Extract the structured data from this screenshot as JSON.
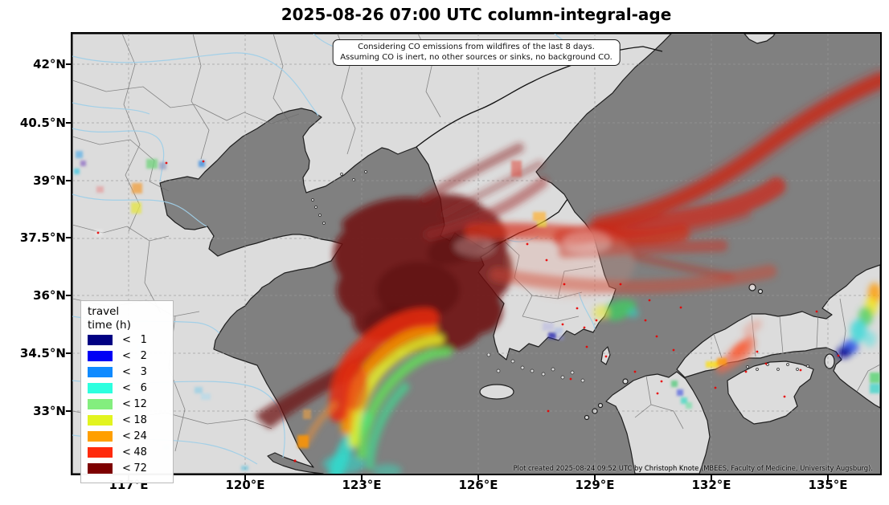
{
  "window": {
    "title": "2025-08-26 07:00 UTC column-integral-age"
  },
  "annotation": {
    "line1": "Considering CO emissions from wildfires of the last 8 days.",
    "line2": "Assuming CO is inert, no other sources or sinks, no background CO."
  },
  "axes": {
    "x_ticks": [
      "117°E",
      "120°E",
      "123°E",
      "126°E",
      "129°E",
      "132°E",
      "135°E"
    ],
    "y_ticks": [
      "42°N",
      "40.5°N",
      "39°N",
      "37.5°N",
      "36°N",
      "34.5°N",
      "33°N"
    ]
  },
  "legend": {
    "title_line1": "travel",
    "title_line2": "time (h)",
    "items": [
      {
        "op": "<",
        "value": "1",
        "color": "#000082"
      },
      {
        "op": "<",
        "value": "2",
        "color": "#0000f5"
      },
      {
        "op": "<",
        "value": "3",
        "color": "#0f8aff"
      },
      {
        "op": "<",
        "value": "6",
        "color": "#2cffdf"
      },
      {
        "op": "<",
        "value": "12",
        "color": "#83ee7e"
      },
      {
        "op": "<",
        "value": "18",
        "color": "#e2f41f"
      },
      {
        "op": "<",
        "value": "24",
        "color": "#ff9f00"
      },
      {
        "op": "<",
        "value": "48",
        "color": "#ff2a0c"
      },
      {
        "op": "<",
        "value": "72",
        "color": "#7d0000"
      }
    ]
  },
  "credit": "Plot created 2025-08-24 09:52 UTC by Christoph Knote (MBEES, Faculty of Medicine, University Augsburg).",
  "colors": {
    "ocean": "#808080",
    "land": "#dcdcdc",
    "river": "#9fcfe8",
    "grid": "#9a9a9a",
    "coastline": "#1f1f1f",
    "plume_dark": "#701010",
    "plume_red": "#d62f1a",
    "fire_dot": "#e80000"
  }
}
